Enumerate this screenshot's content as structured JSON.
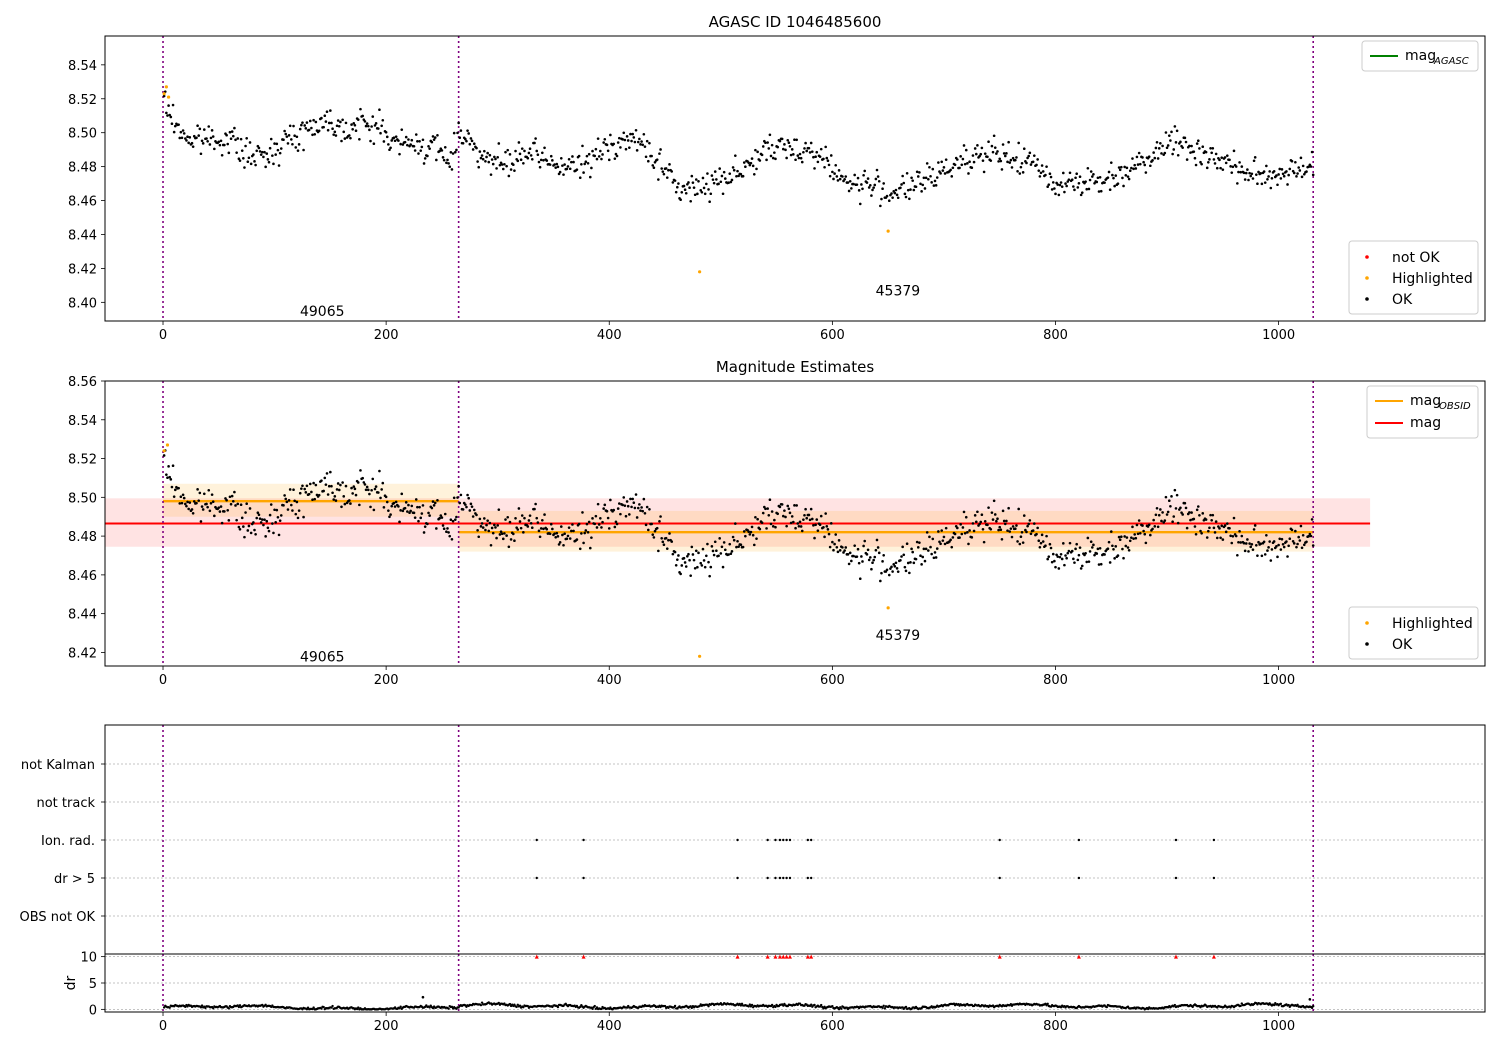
{
  "chart_data": [
    {
      "id": "panel-agasc",
      "type": "scatter",
      "title": "AGASC ID 1046485600",
      "xlim": [
        -52,
        1185
      ],
      "ylim": [
        8.389,
        8.557
      ],
      "x_ticks": [
        0,
        200,
        400,
        600,
        800,
        1000
      ],
      "x_tick_labels": [
        "0",
        "200",
        "400",
        "600",
        "800",
        "1000"
      ],
      "y_ticks": [
        8.4,
        8.42,
        8.44,
        8.46,
        8.48,
        8.5,
        8.52,
        8.54
      ],
      "y_tick_labels": [
        "8.40",
        "8.42",
        "8.44",
        "8.46",
        "8.48",
        "8.50",
        "8.52",
        "8.54"
      ],
      "obsid_boundaries": [
        0,
        265,
        1031
      ],
      "obsid_labels": [
        {
          "x": 132,
          "y": 8.395,
          "text": "49065"
        },
        {
          "x": 648,
          "y": 8.407,
          "text": "45379"
        }
      ],
      "legend_lines": [
        {
          "label": "mag",
          "sub": "AGASC",
          "color": "#008000"
        }
      ],
      "legend_points": [
        {
          "label": "not OK",
          "color": "#ff0000"
        },
        {
          "label": "Highlighted",
          "color": "#ffa500"
        },
        {
          "label": "OK",
          "color": "#000000"
        }
      ],
      "highlighted_points": [
        {
          "x": 1,
          "y": 8.523
        },
        {
          "x": 3,
          "y": 8.527
        },
        {
          "x": 5,
          "y": 8.521
        },
        {
          "x": 481,
          "y": 8.418
        },
        {
          "x": 650,
          "y": 8.442
        }
      ],
      "series_ok_trend": {
        "x": [
          0,
          8,
          15,
          25,
          40,
          60,
          75,
          90,
          105,
          120,
          135,
          150,
          165,
          180,
          195,
          205,
          215,
          230,
          245,
          258,
          265,
          275,
          290,
          310,
          325,
          345,
          365,
          385,
          400,
          415,
          430,
          445,
          460,
          470,
          485,
          500,
          520,
          540,
          560,
          580,
          600,
          615,
          630,
          650,
          665,
          680,
          700,
          720,
          740,
          760,
          780,
          800,
          820,
          840,
          860,
          880,
          900,
          920,
          940,
          960,
          980,
          1000,
          1031
        ],
        "y": [
          8.52,
          8.508,
          8.502,
          8.495,
          8.497,
          8.496,
          8.487,
          8.485,
          8.494,
          8.498,
          8.505,
          8.507,
          8.502,
          8.505,
          8.503,
          8.495,
          8.493,
          8.493,
          8.49,
          8.484,
          8.5,
          8.497,
          8.483,
          8.481,
          8.488,
          8.483,
          8.479,
          8.484,
          8.493,
          8.496,
          8.493,
          8.482,
          8.468,
          8.466,
          8.469,
          8.473,
          8.479,
          8.489,
          8.491,
          8.49,
          8.48,
          8.469,
          8.47,
          8.465,
          8.467,
          8.47,
          8.478,
          8.486,
          8.487,
          8.485,
          8.482,
          8.47,
          8.472,
          8.47,
          8.477,
          8.484,
          8.496,
          8.491,
          8.486,
          8.48,
          8.474,
          8.476,
          8.482
        ]
      }
    },
    {
      "id": "panel-mag-estimates",
      "type": "scatter",
      "title": "Magnitude Estimates",
      "xlim": [
        -52,
        1185
      ],
      "ylim": [
        8.413,
        8.56
      ],
      "x_ticks": [
        0,
        200,
        400,
        600,
        800,
        1000
      ],
      "x_tick_labels": [
        "0",
        "200",
        "400",
        "600",
        "800",
        "1000"
      ],
      "y_ticks": [
        8.42,
        8.44,
        8.46,
        8.48,
        8.5,
        8.52,
        8.54,
        8.56
      ],
      "y_tick_labels": [
        "8.42",
        "8.44",
        "8.46",
        "8.48",
        "8.50",
        "8.52",
        "8.54",
        "8.56"
      ],
      "obsid_boundaries": [
        0,
        265,
        1031
      ],
      "obsid_labels": [
        {
          "x": 132,
          "y": 8.418,
          "text": "49065"
        },
        {
          "x": 648,
          "y": 8.429,
          "text": "45379"
        }
      ],
      "mag_mean": {
        "value": 8.4865,
        "band": [
          8.4745,
          8.4995
        ],
        "x_range": [
          -52,
          1082
        ],
        "color": "#ff0000"
      },
      "mag_obsid": [
        {
          "x_range": [
            0,
            265
          ],
          "value": 8.498,
          "band": [
            8.49,
            8.507
          ]
        },
        {
          "x_range": [
            265,
            1031
          ],
          "value": 8.482,
          "band": [
            8.472,
            8.493
          ]
        }
      ],
      "legend_lines": [
        {
          "label": "mag",
          "sub": "OBSID",
          "color": "#ffa500"
        },
        {
          "label": "mag",
          "sub": "",
          "color": "#ff0000"
        }
      ],
      "legend_points": [
        {
          "label": "Highlighted",
          "color": "#ffa500"
        },
        {
          "label": "OK",
          "color": "#000000"
        }
      ],
      "highlighted_points": [
        {
          "x": 1,
          "y": 8.524
        },
        {
          "x": 4,
          "y": 8.527
        },
        {
          "x": 481,
          "y": 8.418
        },
        {
          "x": 650,
          "y": 8.443
        }
      ]
    },
    {
      "id": "panel-flags",
      "type": "scatter",
      "xlim": [
        -52,
        1185
      ],
      "y_categories": [
        "not Kalman",
        "not track",
        "Ion. rad.",
        "dr > 5",
        "OBS not OK"
      ],
      "flag_x": [
        335,
        377,
        515,
        542,
        549,
        553,
        556,
        559,
        562,
        578,
        581,
        750,
        821,
        908,
        942
      ],
      "flagged_rows": [
        "Ion. rad.",
        "dr > 5"
      ]
    },
    {
      "id": "panel-dr",
      "type": "scatter",
      "ylabel": "dr",
      "xlim": [
        -52,
        1185
      ],
      "ylim": [
        -0.5,
        10.5
      ],
      "x_ticks": [
        0,
        200,
        400,
        600,
        800,
        1000
      ],
      "x_tick_labels": [
        "0",
        "200",
        "400",
        "600",
        "800",
        "1000"
      ],
      "y_ticks": [
        0,
        5,
        10
      ],
      "y_tick_labels": [
        "0",
        "5",
        "10"
      ],
      "clipped_marker_x": [
        335,
        377,
        515,
        542,
        549,
        553,
        556,
        559,
        562,
        578,
        581,
        750,
        821,
        908,
        942
      ],
      "outliers": [
        {
          "x": 233,
          "y": 2.3
        },
        {
          "x": 1028,
          "y": 1.9
        }
      ]
    }
  ]
}
